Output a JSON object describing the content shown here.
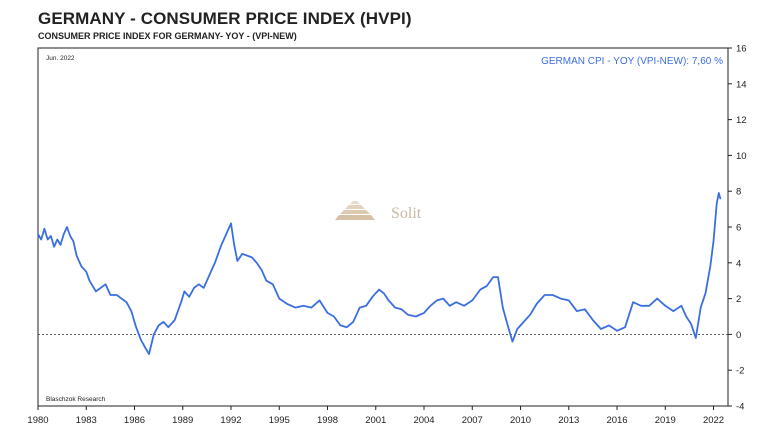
{
  "header": {
    "title": "GERMANY - CONSUMER PRICE INDEX (HVPI)",
    "subtitle": "CONSUMER PRICE INDEX FOR GERMANY- YOY - (VPI-NEW)"
  },
  "date_stamp": "Jun. 2022",
  "source_note": "Blaschzok Research",
  "watermark": "Solit",
  "colors": {
    "line": "#3b6fe0",
    "axis": "#222222",
    "zero_line": "#333333"
  },
  "chart_data": {
    "type": "line",
    "title": "GERMANY - CONSUMER PRICE INDEX (HVPI)",
    "subtitle": "CONSUMER PRICE INDEX FOR GERMANY- YOY - (VPI-NEW)",
    "xlabel": "",
    "ylabel": "",
    "xlim": [
      1980,
      2022.9
    ],
    "ylim": [
      -4,
      16
    ],
    "x_ticks": [
      "1980",
      "1983",
      "1986",
      "1989",
      "1992",
      "1995",
      "1998",
      "2001",
      "2004",
      "2007",
      "2010",
      "2013",
      "2016",
      "2019",
      "2022"
    ],
    "y_ticks": [
      "16",
      "14",
      "12",
      "10",
      "8",
      "6",
      "4",
      "2",
      "0",
      "-2",
      "-4"
    ],
    "y_axis_side": "right",
    "grid": false,
    "zero_line": "dashed",
    "legend": "top-right",
    "series": [
      {
        "name": "GERMAN CPI - YOY (VPI-NEW): 7,60 %",
        "x": [
          1980.0,
          1980.2,
          1980.4,
          1980.6,
          1980.8,
          1981.0,
          1981.2,
          1981.4,
          1981.6,
          1981.8,
          1982.0,
          1982.2,
          1982.4,
          1982.7,
          1983.0,
          1983.2,
          1983.4,
          1983.6,
          1983.9,
          1984.2,
          1984.5,
          1984.9,
          1985.2,
          1985.5,
          1985.8,
          1986.1,
          1986.4,
          1986.7,
          1986.9,
          1987.2,
          1987.5,
          1987.8,
          1988.1,
          1988.5,
          1988.9,
          1989.1,
          1989.4,
          1989.7,
          1990.0,
          1990.3,
          1990.6,
          1991.0,
          1991.4,
          1991.8,
          1992.0,
          1992.2,
          1992.4,
          1992.7,
          1993.0,
          1993.3,
          1993.6,
          1993.9,
          1994.2,
          1994.6,
          1995.0,
          1995.5,
          1996.0,
          1996.5,
          1997.0,
          1997.5,
          1998.0,
          1998.4,
          1998.8,
          1999.2,
          1999.6,
          2000.0,
          2000.4,
          2000.8,
          2001.2,
          2001.5,
          2001.8,
          2002.2,
          2002.6,
          2003.0,
          2003.5,
          2004.0,
          2004.4,
          2004.8,
          2005.2,
          2005.6,
          2006.0,
          2006.5,
          2007.0,
          2007.5,
          2007.9,
          2008.3,
          2008.6,
          2008.9,
          2009.2,
          2009.5,
          2009.8,
          2010.2,
          2010.6,
          2011.0,
          2011.5,
          2012.0,
          2012.5,
          2013.0,
          2013.5,
          2014.0,
          2014.5,
          2015.0,
          2015.5,
          2016.0,
          2016.5,
          2017.0,
          2017.5,
          2018.0,
          2018.5,
          2019.0,
          2019.5,
          2020.0,
          2020.3,
          2020.6,
          2020.9,
          2021.2,
          2021.5,
          2021.8,
          2022.0,
          2022.2,
          2022.33,
          2022.42
        ],
        "values": [
          5.6,
          5.3,
          5.9,
          5.3,
          5.5,
          4.9,
          5.3,
          5.0,
          5.6,
          6.0,
          5.5,
          5.2,
          4.4,
          3.8,
          3.5,
          3.0,
          2.7,
          2.4,
          2.6,
          2.8,
          2.2,
          2.2,
          2.0,
          1.8,
          1.3,
          0.4,
          -0.3,
          -0.8,
          -1.1,
          0.0,
          0.5,
          0.7,
          0.4,
          0.8,
          1.8,
          2.4,
          2.1,
          2.6,
          2.8,
          2.6,
          3.2,
          4.0,
          5.0,
          5.8,
          6.2,
          5.0,
          4.1,
          4.5,
          4.4,
          4.3,
          4.0,
          3.6,
          3.0,
          2.8,
          2.0,
          1.7,
          1.5,
          1.6,
          1.5,
          1.9,
          1.2,
          1.0,
          0.5,
          0.4,
          0.7,
          1.5,
          1.6,
          2.1,
          2.5,
          2.3,
          1.9,
          1.5,
          1.4,
          1.1,
          1.0,
          1.2,
          1.6,
          1.9,
          2.0,
          1.6,
          1.8,
          1.6,
          1.9,
          2.5,
          2.7,
          3.2,
          3.2,
          1.5,
          0.5,
          -0.4,
          0.3,
          0.7,
          1.1,
          1.7,
          2.2,
          2.2,
          2.0,
          1.9,
          1.3,
          1.4,
          0.8,
          0.3,
          0.5,
          0.2,
          0.4,
          1.8,
          1.6,
          1.6,
          2.0,
          1.6,
          1.3,
          1.6,
          1.0,
          0.6,
          -0.2,
          1.5,
          2.3,
          3.8,
          5.2,
          7.3,
          7.9,
          7.6
        ]
      }
    ]
  }
}
